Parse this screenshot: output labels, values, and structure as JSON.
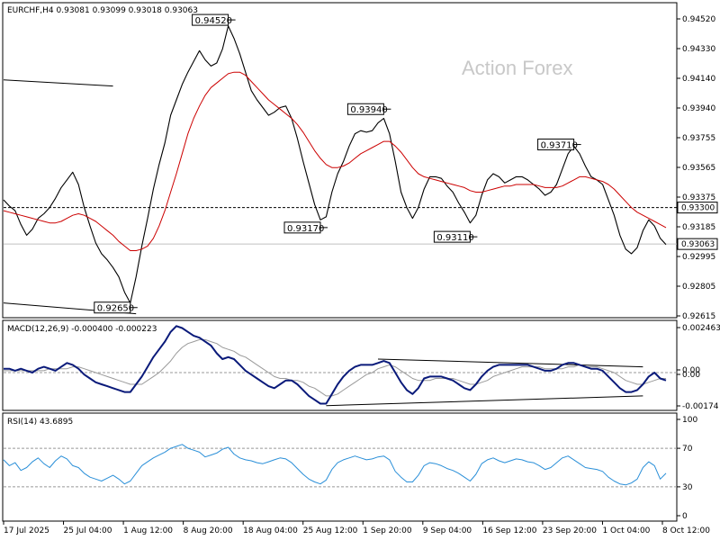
{
  "chart_data": {
    "type": "line",
    "symbol_header": "EURCHF,H4  0.93081 0.93099 0.93018 0.93063",
    "watermark": "Action Forex",
    "x_ticks": [
      "17 Jul 2025",
      "25 Jul 04:00",
      "1 Aug 12:00",
      "8 Aug 20:00",
      "18 Aug 04:00",
      "25 Aug 12:00",
      "1 Sep 20:00",
      "9 Sep 04:00",
      "16 Sep 12:00",
      "23 Sep 20:00",
      "1 Oct 04:00",
      "8 Oct 12:00"
    ],
    "price_panel": {
      "y_range": [
        0.9259,
        0.9462
      ],
      "y_ticks": [
        "0.94520",
        "0.94330",
        "0.94140",
        "0.93940",
        "0.93755",
        "0.93565",
        "0.93375",
        "0.93185",
        "0.92995",
        "0.92805",
        "0.92615"
      ],
      "price_series": [
        0.9335,
        0.9331,
        0.9328,
        0.9319,
        0.9312,
        0.9316,
        0.9323,
        0.9326,
        0.933,
        0.9336,
        0.9343,
        0.9348,
        0.9353,
        0.9345,
        0.933,
        0.9318,
        0.9307,
        0.93,
        0.9296,
        0.9291,
        0.9285,
        0.9275,
        0.9268,
        0.9285,
        0.9305,
        0.9323,
        0.9342,
        0.9358,
        0.9372,
        0.939,
        0.94,
        0.941,
        0.9418,
        0.9425,
        0.9432,
        0.9426,
        0.9422,
        0.9424,
        0.9433,
        0.9448,
        0.944,
        0.943,
        0.9418,
        0.9406,
        0.94,
        0.9395,
        0.939,
        0.9392,
        0.9395,
        0.9396,
        0.9388,
        0.9375,
        0.936,
        0.9346,
        0.9332,
        0.9322,
        0.9324,
        0.934,
        0.9352,
        0.936,
        0.937,
        0.9378,
        0.938,
        0.9379,
        0.938,
        0.9385,
        0.9388,
        0.9378,
        0.936,
        0.934,
        0.933,
        0.9323,
        0.933,
        0.9342,
        0.935,
        0.935,
        0.9349,
        0.9344,
        0.934,
        0.9333,
        0.9327,
        0.932,
        0.9325,
        0.9338,
        0.9348,
        0.9352,
        0.935,
        0.9346,
        0.9348,
        0.935,
        0.935,
        0.9348,
        0.9345,
        0.9342,
        0.9338,
        0.934,
        0.9345,
        0.9355,
        0.9365,
        0.937,
        0.9365,
        0.9357,
        0.935,
        0.9348,
        0.9345,
        0.9335,
        0.9325,
        0.9312,
        0.9303,
        0.93,
        0.9304,
        0.9315,
        0.9322,
        0.9318,
        0.931,
        0.9306
      ],
      "ma_series": [
        0.9328,
        0.9327,
        0.9326,
        0.9325,
        0.9324,
        0.9323,
        0.9322,
        0.9321,
        0.932,
        0.932,
        0.9321,
        0.9323,
        0.9325,
        0.9326,
        0.9325,
        0.9323,
        0.9321,
        0.9318,
        0.9315,
        0.9312,
        0.9308,
        0.9305,
        0.9302,
        0.9302,
        0.9303,
        0.9305,
        0.931,
        0.9318,
        0.9328,
        0.934,
        0.9352,
        0.9365,
        0.9378,
        0.9388,
        0.9396,
        0.9403,
        0.9408,
        0.9411,
        0.9414,
        0.9417,
        0.9418,
        0.9418,
        0.9416,
        0.9412,
        0.9408,
        0.9404,
        0.94,
        0.9397,
        0.9394,
        0.9391,
        0.9388,
        0.9384,
        0.9379,
        0.9373,
        0.9367,
        0.9362,
        0.9358,
        0.9356,
        0.9356,
        0.9357,
        0.9359,
        0.9362,
        0.9365,
        0.9367,
        0.9369,
        0.9371,
        0.9373,
        0.9373,
        0.937,
        0.9366,
        0.9361,
        0.9356,
        0.9352,
        0.935,
        0.9349,
        0.9348,
        0.9347,
        0.9346,
        0.9345,
        0.9344,
        0.9343,
        0.9341,
        0.934,
        0.934,
        0.9341,
        0.9342,
        0.9343,
        0.9344,
        0.9344,
        0.9345,
        0.9345,
        0.9345,
        0.9345,
        0.9344,
        0.9343,
        0.9343,
        0.9343,
        0.9344,
        0.9346,
        0.9348,
        0.935,
        0.935,
        0.9349,
        0.9348,
        0.9347,
        0.9345,
        0.9342,
        0.9338,
        0.9334,
        0.933,
        0.9327,
        0.9325,
        0.9323,
        0.9321,
        0.9319,
        0.9317
      ],
      "level_lines": [
        {
          "value": 0.933,
          "label": "0.93300",
          "style": "dashed",
          "color": "#000000"
        },
        {
          "value": 0.93063,
          "label": "0.93063",
          "style": "solid",
          "color": "#c0c0c0"
        }
      ],
      "annotations": [
        {
          "label": "0.94520",
          "x_index": 39,
          "value": 0.9452
        },
        {
          "label": "0.93940",
          "x_index": 66,
          "value": 0.9394
        },
        {
          "label": "0.93710",
          "x_index": 99,
          "value": 0.9371
        },
        {
          "label": "0.93170",
          "x_index": 55,
          "value": 0.9317
        },
        {
          "label": "0.93110",
          "x_index": 81,
          "value": 0.9311
        },
        {
          "label": "0.92650",
          "x_index": 22,
          "value": 0.9265
        }
      ],
      "trendlines": [
        {
          "from": [
            0,
            0.9413
          ],
          "to": [
            19,
            0.9409
          ]
        },
        {
          "from": [
            0,
            0.9268
          ],
          "to": [
            23,
            0.9261
          ]
        }
      ]
    },
    "macd_panel": {
      "label": "MACD(12,26,9) -0.000400 -0.000223",
      "y_range": [
        -0.0019,
        0.0026
      ],
      "y_ticks": [
        "0.002463",
        "0.00",
        "0.00",
        "-0.00174"
      ],
      "macd_series": [
        0.0002,
        0.0002,
        0.0001,
        0.0002,
        0.0001,
        0.0,
        0.0002,
        0.0003,
        0.0002,
        0.0001,
        0.0003,
        0.0005,
        0.0004,
        0.0002,
        -0.0001,
        -0.0003,
        -0.0005,
        -0.0006,
        -0.0007,
        -0.0008,
        -0.0009,
        -0.001,
        -0.001,
        -0.0006,
        -0.0002,
        0.0003,
        0.0008,
        0.0012,
        0.0016,
        0.0021,
        0.0024,
        0.0023,
        0.0021,
        0.0019,
        0.0018,
        0.0016,
        0.0014,
        0.001,
        0.0007,
        0.0008,
        0.0007,
        0.0004,
        0.0001,
        -0.0001,
        -0.0003,
        -0.0005,
        -0.0007,
        -0.0008,
        -0.0006,
        -0.0004,
        -0.0004,
        -0.0006,
        -0.0009,
        -0.0012,
        -0.0014,
        -0.0016,
        -0.0016,
        -0.0011,
        -0.0006,
        -0.0002,
        0.0001,
        0.0003,
        0.0004,
        0.0004,
        0.0004,
        0.0005,
        0.0006,
        0.0005,
        0.0,
        -0.0005,
        -0.0009,
        -0.0011,
        -0.0008,
        -0.0003,
        -0.0002,
        -0.0002,
        -0.0002,
        -0.0003,
        -0.0004,
        -0.0006,
        -0.0008,
        -0.0009,
        -0.0006,
        -0.0002,
        0.0001,
        0.0003,
        0.0004,
        0.0004,
        0.0004,
        0.0004,
        0.0004,
        0.0004,
        0.0003,
        0.0002,
        0.0001,
        0.0001,
        0.0002,
        0.0004,
        0.0005,
        0.0005,
        0.0004,
        0.0003,
        0.0002,
        0.0002,
        0.0001,
        -0.0002,
        -0.0005,
        -0.0008,
        -0.001,
        -0.001,
        -0.0009,
        -0.0006,
        -0.0002,
        0.0,
        -0.0003,
        -0.0004
      ],
      "signal_series": [
        0.0001,
        0.0001,
        0.0001,
        0.0001,
        0.0001,
        0.0001,
        0.0001,
        0.0001,
        0.0002,
        0.0002,
        0.0002,
        0.0002,
        0.0003,
        0.0003,
        0.0002,
        0.0001,
        0.0,
        -0.0001,
        -0.0002,
        -0.0003,
        -0.0004,
        -0.0005,
        -0.0006,
        -0.0006,
        -0.0006,
        -0.0004,
        -0.0002,
        0.0,
        0.0003,
        0.0006,
        0.001,
        0.0013,
        0.0015,
        0.0016,
        0.0017,
        0.0017,
        0.0016,
        0.0015,
        0.0013,
        0.0012,
        0.0011,
        0.0009,
        0.0008,
        0.0006,
        0.0004,
        0.0002,
        0.0,
        -0.0002,
        -0.0003,
        -0.0003,
        -0.0004,
        -0.0004,
        -0.0005,
        -0.0007,
        -0.0008,
        -0.001,
        -0.0012,
        -0.0012,
        -0.0011,
        -0.0009,
        -0.0007,
        -0.0005,
        -0.0003,
        -0.0001,
        0.0,
        0.0002,
        0.0003,
        0.0004,
        0.0003,
        0.0001,
        -0.0001,
        -0.0003,
        -0.0004,
        -0.0004,
        -0.0004,
        -0.0003,
        -0.0003,
        -0.0003,
        -0.0003,
        -0.0004,
        -0.0005,
        -0.0006,
        -0.0006,
        -0.0005,
        -0.0004,
        -0.0002,
        -0.0001,
        0.0,
        0.0001,
        0.0002,
        0.0003,
        0.0003,
        0.0003,
        0.0003,
        0.0002,
        0.0002,
        0.0002,
        0.0002,
        0.0003,
        0.0003,
        0.0004,
        0.0003,
        0.0003,
        0.0003,
        0.0002,
        0.0001,
        0.0,
        -0.0002,
        -0.0004,
        -0.0005,
        -0.0006,
        -0.0006,
        -0.0005,
        -0.0004,
        -0.0003,
        -0.0003
      ],
      "trendlines": [
        {
          "from": [
            65,
            0.0007
          ],
          "to": [
            111,
            0.0003
          ]
        },
        {
          "from": [
            56,
            -0.0017
          ],
          "to": [
            111,
            -0.0012
          ]
        }
      ]
    },
    "rsi_panel": {
      "label": "RSI(14) 43.6895",
      "y_range": [
        0,
        100
      ],
      "y_ticks": [
        "100",
        "70",
        "30",
        "0"
      ],
      "levels": [
        70,
        30
      ],
      "rsi_series": [
        58,
        52,
        55,
        47,
        50,
        56,
        60,
        54,
        50,
        57,
        62,
        59,
        52,
        50,
        44,
        40,
        38,
        36,
        39,
        42,
        38,
        33,
        36,
        44,
        52,
        56,
        60,
        63,
        66,
        70,
        72,
        74,
        70,
        68,
        66,
        61,
        63,
        65,
        69,
        71,
        64,
        60,
        58,
        57,
        55,
        54,
        56,
        58,
        60,
        59,
        55,
        49,
        43,
        38,
        35,
        33,
        37,
        48,
        55,
        58,
        60,
        62,
        60,
        58,
        59,
        61,
        62,
        58,
        46,
        40,
        35,
        35,
        42,
        52,
        55,
        54,
        52,
        49,
        47,
        44,
        40,
        36,
        43,
        54,
        58,
        60,
        57,
        55,
        57,
        59,
        58,
        56,
        55,
        52,
        48,
        50,
        55,
        60,
        62,
        58,
        54,
        50,
        49,
        48,
        46,
        40,
        36,
        33,
        32,
        34,
        38,
        50,
        56,
        52,
        38,
        44
      ]
    }
  }
}
